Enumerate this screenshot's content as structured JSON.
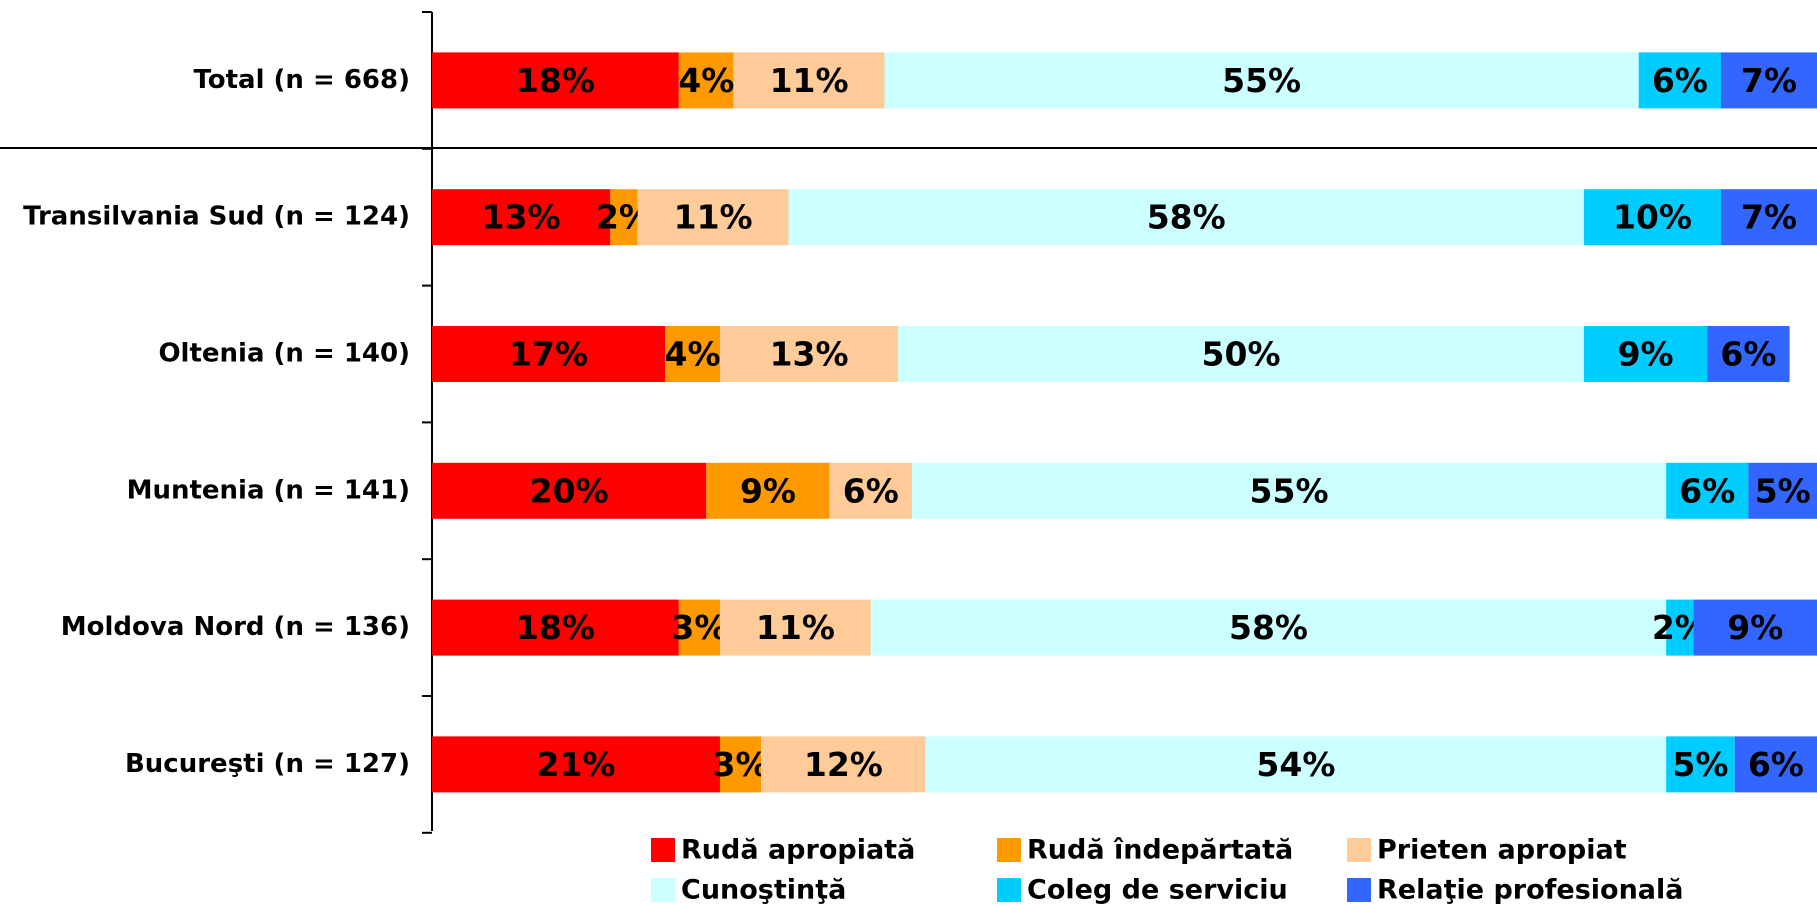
{
  "chart_data": {
    "type": "stacked-bar-horizontal",
    "categories": [
      "Total (n = 668)",
      "Transilvania Sud (n = 124)",
      "Oltenia (n = 140)",
      "Muntenia (n = 141)",
      "Moldova Nord (n = 136)",
      "Bucureşti (n = 127)"
    ],
    "series": [
      {
        "name": "Rudă apropiată",
        "color": "#ff0000",
        "values": [
          18,
          13,
          17,
          20,
          18,
          21
        ],
        "value_labels": [
          "18%",
          "13%",
          "17%",
          "20%",
          "18%",
          "21%"
        ]
      },
      {
        "name": "Rudă îndepărtată",
        "color": "#ff9900",
        "values": [
          4,
          2,
          4,
          9,
          3,
          3
        ],
        "value_labels": [
          "4%",
          "2%",
          "4%",
          "9%",
          "3%",
          "3%"
        ]
      },
      {
        "name": "Prieten apropiat",
        "color": "#ffcc99",
        "values": [
          11,
          11,
          13,
          6,
          11,
          12
        ],
        "value_labels": [
          "11%",
          "11%",
          "13%",
          "6%",
          "11%",
          "12%"
        ]
      },
      {
        "name": "Cunoştinţă",
        "color": "#ccffff",
        "values": [
          55,
          58,
          50,
          55,
          58,
          54
        ],
        "value_labels": [
          "55%",
          "58%",
          "50%",
          "55%",
          "58%",
          "54%"
        ]
      },
      {
        "name": "Coleg de serviciu",
        "color": "#00ccff",
        "values": [
          6,
          10,
          9,
          6,
          2,
          5
        ],
        "value_labels": [
          "6%",
          "10%",
          "9%",
          "6%",
          "2%",
          "5%"
        ]
      },
      {
        "name": "Relaţie profesională",
        "color": "#3366ff",
        "values": [
          7,
          7,
          6,
          5,
          9,
          6
        ],
        "value_labels": [
          "7%",
          "7%",
          "6%",
          "5%",
          "9%",
          "6%"
        ]
      }
    ],
    "xlim": [
      0,
      101
    ]
  }
}
